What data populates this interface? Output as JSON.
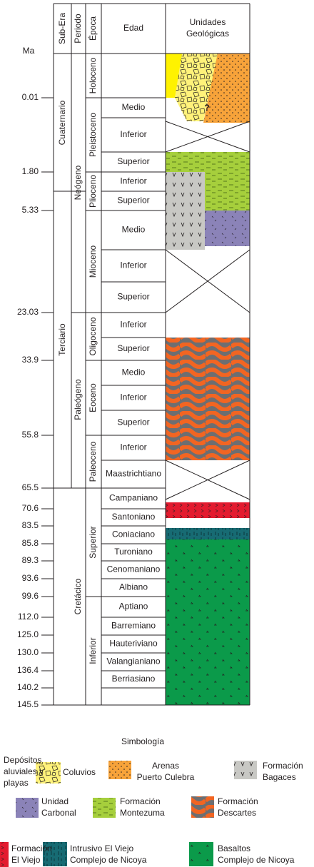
{
  "header": {
    "ma": "Ma",
    "sub_era": "Sub-Era",
    "periodo": "Periodo",
    "epoca": "Época",
    "edad": "Edad",
    "unidades": [
      "Unidades",
      "Geológicas"
    ]
  },
  "ma_ticks": [
    "0.01",
    "1.80",
    "5.33",
    "23.03",
    "33.9",
    "55.8",
    "65.5",
    "70.6",
    "83.5",
    "85.8",
    "89.3",
    "93.6",
    "99.6",
    "112.0",
    "125.0",
    "130.0",
    "136.4",
    "140.2",
    "145.5"
  ],
  "sub_eras": [
    "Cuaternario",
    "Terciario"
  ],
  "periods": [
    "Neógeno",
    "Paleógeno",
    "Cretácico"
  ],
  "epochs": [
    "Holoceno",
    "Pleistoceno",
    "Plioceno",
    "Mioceno",
    "Oligoceno",
    "Eoceno",
    "Paleoceno",
    "Superior",
    "Inferior"
  ],
  "ages": [
    "Superior",
    "Medio",
    "Inferior",
    "Superior",
    "Inferior",
    "Superior",
    "Medio",
    "Inferior",
    "Superior",
    "Inferior",
    "Superior",
    "Medio",
    "Inferior",
    "Superior",
    "Inferior",
    "Maastrichtiano",
    "Campaniano",
    "Santoniano",
    "Coniaciano",
    "Turoniano",
    "Cenomaniano",
    "Albiano",
    "Aptiano",
    "Barremiano",
    "Hauteriviano",
    "Valangianiano",
    "Berriasiano"
  ],
  "unit_mark": "?",
  "legend": {
    "title": "Simbología",
    "items": [
      {
        "lines": [
          "Depósitos",
          "aluviales y",
          "playas"
        ]
      },
      {
        "lines": [
          "Coluvios"
        ]
      },
      {
        "lines": [
          "Arenas",
          "Puerto Culebra"
        ]
      },
      {
        "lines": [
          "Formación",
          "Bagaces"
        ]
      },
      {
        "lines": [
          "Unidad",
          "Carbonal"
        ]
      },
      {
        "lines": [
          "Formación",
          "Montezuma"
        ]
      },
      {
        "lines": [
          "Formación",
          "Descartes"
        ]
      },
      {
        "lines": [
          "Formación",
          "El Viejo"
        ]
      },
      {
        "lines": [
          "Intrusivo El Viejo",
          "Complejo de Nicoya"
        ]
      },
      {
        "lines": [
          "Basaltos",
          "Complejo de Nicoya"
        ]
      }
    ]
  }
}
